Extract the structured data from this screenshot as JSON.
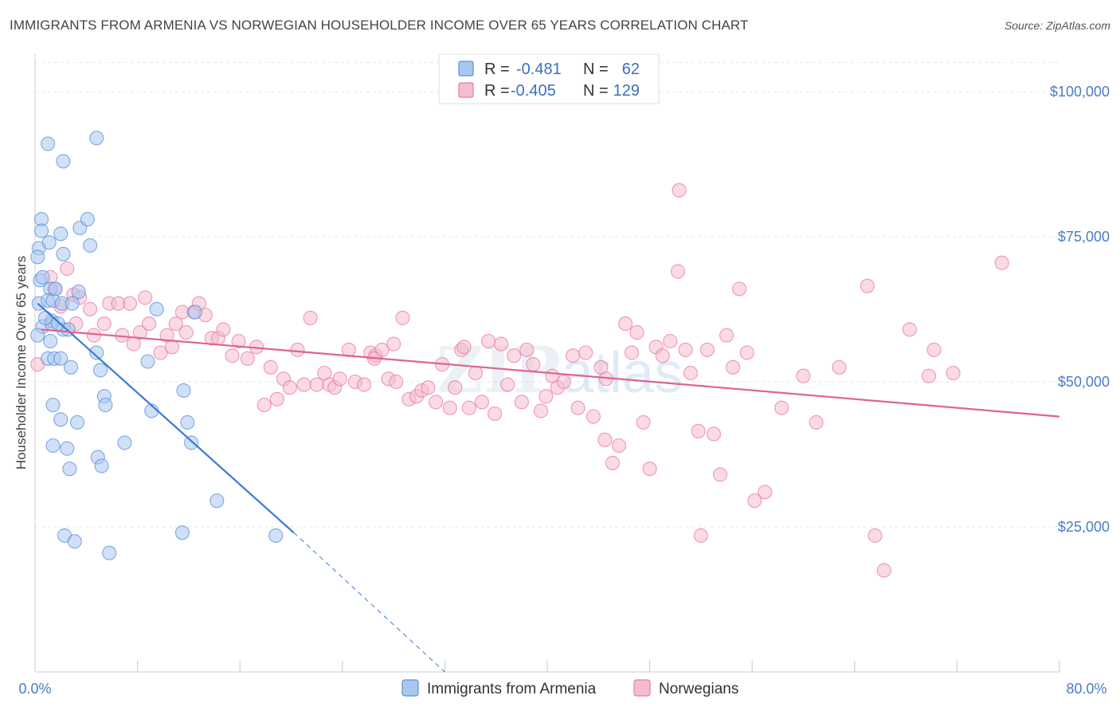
{
  "title": "IMMIGRANTS FROM ARMENIA VS NORWEGIAN HOUSEHOLDER INCOME OVER 65 YEARS CORRELATION CHART",
  "source": "Source: ZipAtlas.com",
  "watermark": {
    "zip": "ZIP",
    "atlas": "atlas"
  },
  "colors": {
    "blue": "#5b8fd9",
    "blue_fill": "#a9c6ee",
    "blue_line": "#3a7bd5",
    "pink": "#e87aa0",
    "pink_fill": "#f5bcd0",
    "pink_line": "#e0628f",
    "tick_text": "#4a7cc4"
  },
  "chart_data": {
    "type": "scatter",
    "xlabel": "",
    "ylabel": "Householder Income Over 65 years",
    "xlim": [
      0,
      80
    ],
    "ylim": [
      0,
      105000
    ],
    "x_tick_labels": {
      "min": "0.0%",
      "max": "80.0%"
    },
    "y_ticks": [
      {
        "value": 25000,
        "label": "$25,000"
      },
      {
        "value": 50000,
        "label": "$50,000"
      },
      {
        "value": 75000,
        "label": "$75,000"
      },
      {
        "value": 100000,
        "label": "$100,000"
      }
    ],
    "grid": true,
    "legend_position": "top-center",
    "legend": [
      {
        "r_label": "R =",
        "r": "-0.481",
        "n_label": "N =",
        "n": "62"
      },
      {
        "r_label": "R =",
        "r": "-0.405",
        "n_label": "N =",
        "n": "129"
      }
    ],
    "series": [
      {
        "name": "Immigrants from Armenia",
        "color": "#5b8fd9",
        "trend": {
          "x": [
            0.2,
            20.2
          ],
          "y": [
            63500,
            24000
          ],
          "dash_to": {
            "x": 32,
            "y": 0
          }
        },
        "points": [
          [
            0.5,
            78000
          ],
          [
            0.5,
            76000
          ],
          [
            0.3,
            73000
          ],
          [
            0.2,
            71500
          ],
          [
            0.4,
            67500
          ],
          [
            0.3,
            63500
          ],
          [
            0.6,
            59500
          ],
          [
            0.2,
            58000
          ],
          [
            1.0,
            91000
          ],
          [
            1.1,
            74000
          ],
          [
            1.2,
            66000
          ],
          [
            1.0,
            64000
          ],
          [
            1.3,
            60500
          ],
          [
            1.2,
            57000
          ],
          [
            1.0,
            54000
          ],
          [
            1.5,
            54000
          ],
          [
            1.4,
            46000
          ],
          [
            1.4,
            39000
          ],
          [
            1.4,
            64000
          ],
          [
            1.3,
            60000
          ],
          [
            1.6,
            66000
          ],
          [
            2.0,
            75500
          ],
          [
            2.1,
            63500
          ],
          [
            2.2,
            72000
          ],
          [
            2.0,
            54000
          ],
          [
            2.0,
            43500
          ],
          [
            2.2,
            59000
          ],
          [
            2.3,
            23500
          ],
          [
            2.5,
            38500
          ],
          [
            2.7,
            35000
          ],
          [
            2.8,
            52500
          ],
          [
            2.9,
            63500
          ],
          [
            2.2,
            88000
          ],
          [
            3.1,
            22500
          ],
          [
            3.5,
            76500
          ],
          [
            3.3,
            43000
          ],
          [
            3.4,
            65500
          ],
          [
            4.1,
            78000
          ],
          [
            4.3,
            73500
          ],
          [
            4.8,
            92000
          ],
          [
            4.8,
            55000
          ],
          [
            4.9,
            37000
          ],
          [
            5.1,
            52000
          ],
          [
            5.2,
            35500
          ],
          [
            5.4,
            47500
          ],
          [
            5.5,
            46000
          ],
          [
            5.8,
            20500
          ],
          [
            7.0,
            39500
          ],
          [
            8.8,
            53500
          ],
          [
            9.1,
            45000
          ],
          [
            9.5,
            62500
          ],
          [
            11.6,
            48500
          ],
          [
            11.5,
            24000
          ],
          [
            11.9,
            43000
          ],
          [
            12.2,
            39500
          ],
          [
            12.5,
            62000
          ],
          [
            14.2,
            29500
          ],
          [
            18.8,
            23500
          ],
          [
            0.8,
            61000
          ],
          [
            1.8,
            60000
          ],
          [
            0.6,
            68000
          ],
          [
            2.6,
            59000
          ]
        ]
      },
      {
        "name": "Norwegians",
        "color": "#e87aa0",
        "trend": {
          "x": [
            0.5,
            80
          ],
          "y": [
            59000,
            44000
          ]
        },
        "points": [
          [
            0.2,
            53000
          ],
          [
            1.2,
            68000
          ],
          [
            1.5,
            66000
          ],
          [
            2.0,
            63000
          ],
          [
            2.5,
            69500
          ],
          [
            3.0,
            65000
          ],
          [
            3.2,
            60000
          ],
          [
            3.5,
            64500
          ],
          [
            4.3,
            62500
          ],
          [
            4.6,
            58000
          ],
          [
            5.4,
            60000
          ],
          [
            5.8,
            63500
          ],
          [
            6.5,
            63500
          ],
          [
            6.8,
            58000
          ],
          [
            7.4,
            63500
          ],
          [
            7.7,
            56500
          ],
          [
            8.2,
            58500
          ],
          [
            8.6,
            64500
          ],
          [
            8.9,
            60000
          ],
          [
            9.8,
            55000
          ],
          [
            10.3,
            58000
          ],
          [
            10.7,
            56000
          ],
          [
            11.0,
            60000
          ],
          [
            11.5,
            62000
          ],
          [
            11.8,
            58500
          ],
          [
            12.4,
            62000
          ],
          [
            12.8,
            63500
          ],
          [
            13.3,
            61500
          ],
          [
            13.8,
            57500
          ],
          [
            14.3,
            57500
          ],
          [
            14.7,
            59000
          ],
          [
            15.4,
            54500
          ],
          [
            15.9,
            57000
          ],
          [
            16.6,
            54000
          ],
          [
            17.3,
            56000
          ],
          [
            17.9,
            46000
          ],
          [
            18.4,
            52500
          ],
          [
            18.9,
            47000
          ],
          [
            19.4,
            50500
          ],
          [
            19.9,
            49000
          ],
          [
            20.5,
            55500
          ],
          [
            21.0,
            49500
          ],
          [
            21.5,
            61000
          ],
          [
            22.0,
            49500
          ],
          [
            22.6,
            51500
          ],
          [
            23.0,
            49500
          ],
          [
            23.4,
            49000
          ],
          [
            23.8,
            50500
          ],
          [
            24.5,
            55500
          ],
          [
            25.0,
            50000
          ],
          [
            25.7,
            49500
          ],
          [
            26.2,
            55000
          ],
          [
            26.6,
            54500
          ],
          [
            27.1,
            55500
          ],
          [
            27.6,
            50500
          ],
          [
            28.2,
            50000
          ],
          [
            28.7,
            61000
          ],
          [
            29.2,
            47000
          ],
          [
            29.8,
            47500
          ],
          [
            30.2,
            48500
          ],
          [
            30.7,
            49000
          ],
          [
            31.3,
            46500
          ],
          [
            31.8,
            53000
          ],
          [
            32.4,
            45500
          ],
          [
            32.8,
            49000
          ],
          [
            33.3,
            55500
          ],
          [
            33.9,
            45500
          ],
          [
            34.4,
            51500
          ],
          [
            34.9,
            46500
          ],
          [
            35.4,
            57000
          ],
          [
            35.9,
            44500
          ],
          [
            36.4,
            56500
          ],
          [
            36.9,
            49500
          ],
          [
            37.4,
            54500
          ],
          [
            38.0,
            46500
          ],
          [
            38.4,
            55500
          ],
          [
            38.9,
            53000
          ],
          [
            39.5,
            45000
          ],
          [
            39.9,
            47500
          ],
          [
            40.4,
            51000
          ],
          [
            40.8,
            49000
          ],
          [
            41.3,
            50000
          ],
          [
            42.0,
            54500
          ],
          [
            42.4,
            45500
          ],
          [
            43.0,
            55000
          ],
          [
            43.6,
            44000
          ],
          [
            44.2,
            52500
          ],
          [
            44.6,
            50500
          ],
          [
            45.1,
            36000
          ],
          [
            45.6,
            39000
          ],
          [
            46.1,
            60000
          ],
          [
            46.6,
            55000
          ],
          [
            47.0,
            58500
          ],
          [
            47.5,
            43000
          ],
          [
            48.0,
            35000
          ],
          [
            48.5,
            56000
          ],
          [
            49.0,
            54500
          ],
          [
            49.6,
            57000
          ],
          [
            50.2,
            69000
          ],
          [
            50.8,
            55500
          ],
          [
            51.2,
            51500
          ],
          [
            51.8,
            41500
          ],
          [
            52.5,
            55500
          ],
          [
            53.0,
            41000
          ],
          [
            53.5,
            34000
          ],
          [
            54.0,
            58000
          ],
          [
            54.5,
            52500
          ],
          [
            55.0,
            66000
          ],
          [
            55.6,
            55000
          ],
          [
            56.2,
            29500
          ],
          [
            57.0,
            31000
          ],
          [
            58.3,
            45500
          ],
          [
            60.0,
            51000
          ],
          [
            61.0,
            43000
          ],
          [
            62.8,
            52500
          ],
          [
            65.0,
            66500
          ],
          [
            65.6,
            23500
          ],
          [
            66.3,
            17500
          ],
          [
            68.3,
            59000
          ],
          [
            69.8,
            51000
          ],
          [
            70.2,
            55500
          ],
          [
            71.7,
            51500
          ],
          [
            75.5,
            70500
          ],
          [
            50.3,
            83000
          ],
          [
            52.0,
            23500
          ],
          [
            44.5,
            40000
          ],
          [
            33.5,
            56000
          ],
          [
            28.0,
            56500
          ],
          [
            26.5,
            54000
          ]
        ]
      }
    ]
  }
}
